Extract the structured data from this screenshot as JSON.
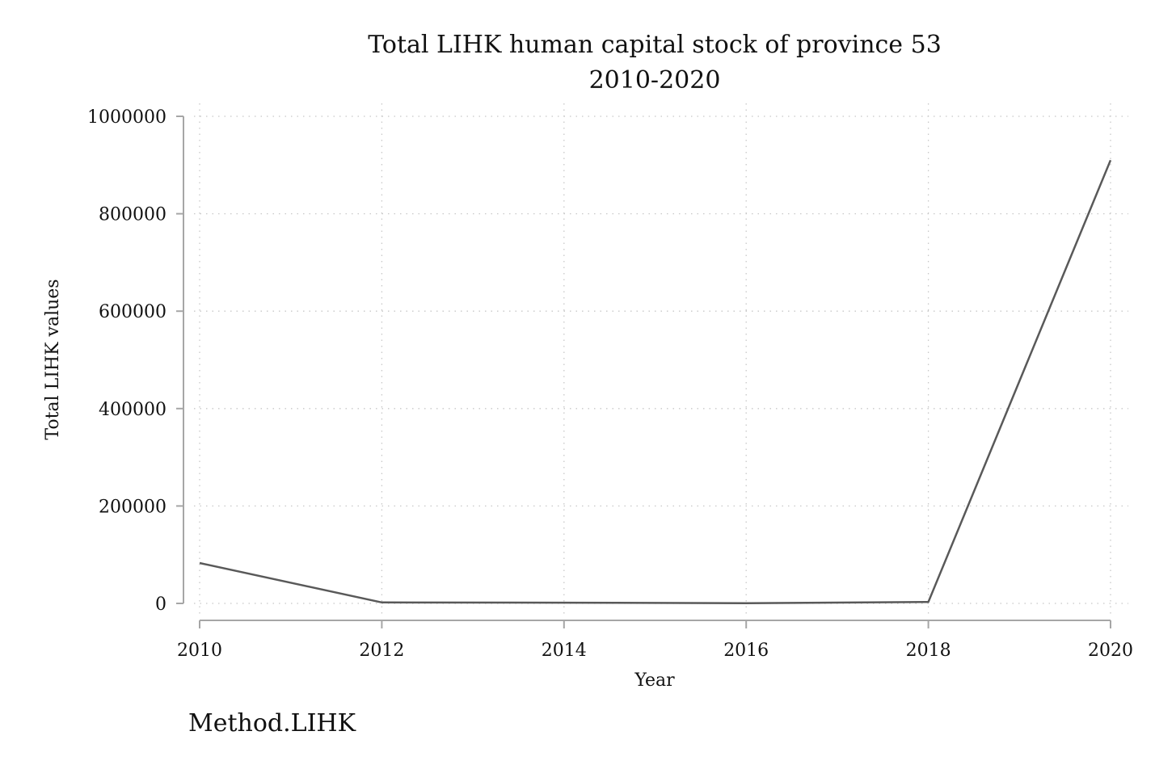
{
  "chart_data": {
    "type": "line",
    "title": "Total LIHK human capital stock of province 53",
    "subtitle": "2010-2020",
    "xlabel": "Year",
    "ylabel": "Total LIHK values",
    "note": "Method.LIHK",
    "xlim": [
      2010,
      2020
    ],
    "ylim": [
      0,
      1000000
    ],
    "x_ticks": [
      "2010",
      "2012",
      "2014",
      "2016",
      "2018",
      "2020"
    ],
    "y_ticks": [
      "0",
      "200000",
      "400000",
      "600000",
      "800000",
      "1000000"
    ],
    "grid": true,
    "line_color": "#595959",
    "series": [
      {
        "x": [
          2010,
          2012,
          2014,
          2016,
          2018,
          2020
        ],
        "values": [
          83000,
          2000,
          1500,
          500,
          3000,
          910000
        ]
      }
    ]
  }
}
